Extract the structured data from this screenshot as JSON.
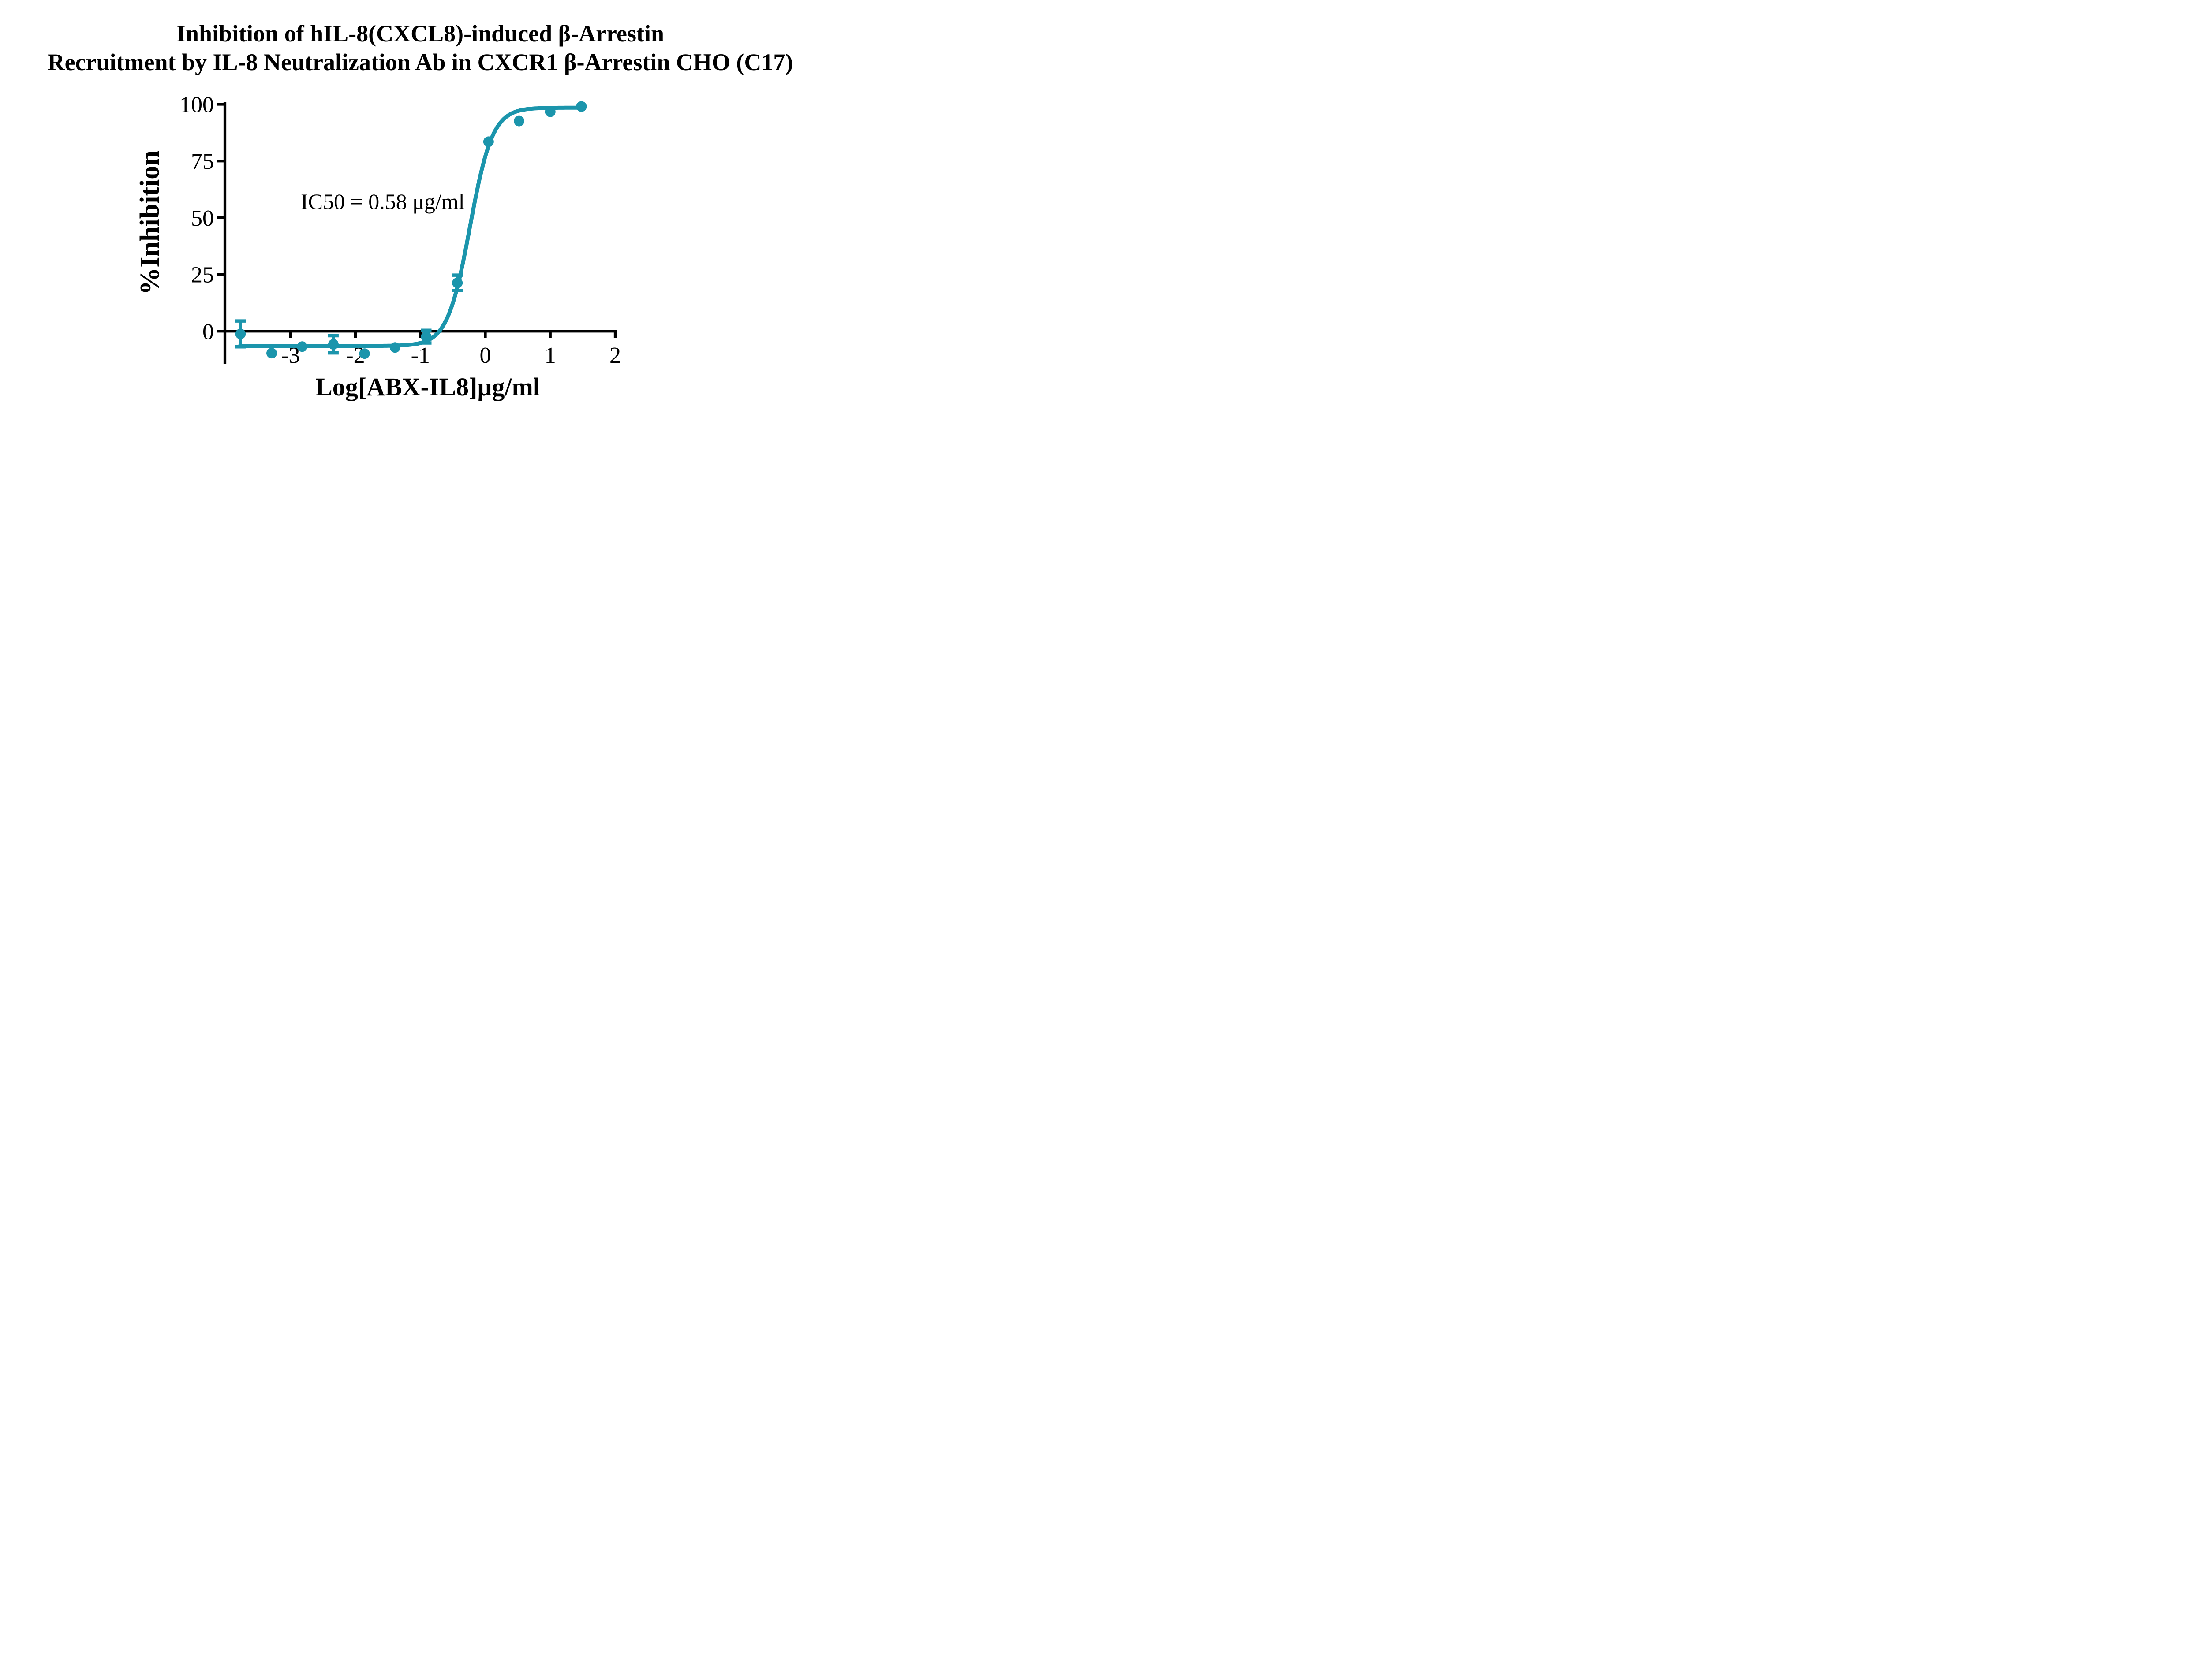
{
  "title": {
    "line1": "Inhibition of hIL-8(CXCL8)-induced β-Arrestin",
    "line2": "Recruitment by IL-8 Neutralization Ab in CXCR1 β-Arrestin CHO (C17)"
  },
  "chart_data": {
    "type": "scatter",
    "subtype": "dose-response-inhibition-curve-with-fit",
    "title": "Inhibition of hIL-8(CXCL8)-induced β-Arrestin Recruitment by IL-8 Neutralization Ab in CXCR1 β-Arrestin CHO (C17)",
    "xlabel": "Log[ABX-IL8]μg/ml",
    "ylabel": "%Inhibition",
    "x_ticks": [
      -3,
      -2,
      -1,
      0,
      1,
      2
    ],
    "y_ticks": [
      100,
      75,
      50,
      25,
      0
    ],
    "xlim": [
      -4.0,
      2.02
    ],
    "ylim": [
      -14.3,
      100.9
    ],
    "grid": false,
    "legend": "none",
    "accent_color": "#1b95ac",
    "axis_color": "#000000",
    "series": [
      {
        "name": "ABX-IL8",
        "marker": "circle",
        "marker_color": "#1b95ac",
        "points": [
          {
            "x": -3.77,
            "y": -1.2,
            "err": 5.7
          },
          {
            "x": -3.29,
            "y": -9.7,
            "err": null
          },
          {
            "x": -2.82,
            "y": -6.8,
            "err": null
          },
          {
            "x": -2.34,
            "y": -5.8,
            "err": 3.8
          },
          {
            "x": -1.86,
            "y": -9.9,
            "err": null
          },
          {
            "x": -1.39,
            "y": -7.2,
            "err": null
          },
          {
            "x": -0.91,
            "y": -2.4,
            "err": 2.8
          },
          {
            "x": -0.43,
            "y": 21.3,
            "err": 3.4
          },
          {
            "x": 0.05,
            "y": 83.5,
            "err": null
          },
          {
            "x": 0.52,
            "y": 92.6,
            "err": null
          },
          {
            "x": 1.0,
            "y": 96.7,
            "err": null
          },
          {
            "x": 1.48,
            "y": 99.0,
            "err": null
          }
        ]
      }
    ],
    "fit_curve": {
      "model": "four-parameter-logistic",
      "bottom": -6.5,
      "top": 98.5,
      "logIC50": -0.2366,
      "hill_slope": 2.5,
      "x_start": -3.78,
      "x_end": 1.47
    },
    "annotation": {
      "text": "IC50 = 0.58 μg/ml",
      "ic50_value_ug_ml": 0.58
    }
  }
}
